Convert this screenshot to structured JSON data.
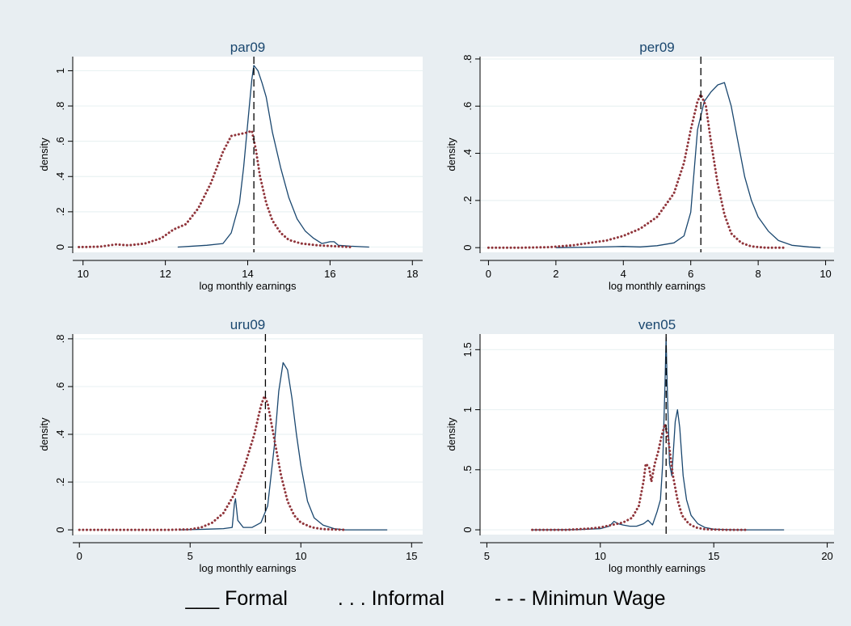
{
  "legend": {
    "formal": "___ Formal",
    "informal": ". . . Informal",
    "minimum_wage": "- - - Minimun Wage"
  },
  "colors": {
    "background": "#e8eef2",
    "plot_background": "#ffffff",
    "formal_line": "#1a476f",
    "informal_line": "#90353b",
    "grid": "#eaf2f3"
  },
  "chart_data": [
    {
      "type": "line",
      "title": "par09",
      "xlabel": "log monthly earnings",
      "ylabel": "density",
      "xlim": [
        9.75,
        18.25
      ],
      "ylim": [
        -0.03,
        1.08
      ],
      "xticks": [
        10,
        12,
        14,
        16,
        18
      ],
      "yticks": [
        0,
        0.2,
        0.4,
        0.6,
        0.8,
        1
      ],
      "ytick_labels": [
        "0",
        ".2",
        ".4",
        ".6",
        ".8",
        "1"
      ],
      "min_wage": 14.15,
      "grid": true,
      "series": [
        {
          "key": "formal",
          "style": "solid",
          "points": [
            [
              12.3,
              0.0
            ],
            [
              13.0,
              0.01
            ],
            [
              13.4,
              0.02
            ],
            [
              13.6,
              0.08
            ],
            [
              13.8,
              0.25
            ],
            [
              13.9,
              0.45
            ],
            [
              14.0,
              0.7
            ],
            [
              14.1,
              0.95
            ],
            [
              14.15,
              1.03
            ],
            [
              14.25,
              1.0
            ],
            [
              14.35,
              0.93
            ],
            [
              14.45,
              0.85
            ],
            [
              14.6,
              0.65
            ],
            [
              14.8,
              0.45
            ],
            [
              15.0,
              0.28
            ],
            [
              15.2,
              0.16
            ],
            [
              15.4,
              0.09
            ],
            [
              15.6,
              0.05
            ],
            [
              15.8,
              0.02
            ],
            [
              16.0,
              0.03
            ],
            [
              16.1,
              0.03
            ],
            [
              16.2,
              0.01
            ],
            [
              16.5,
              0.005
            ],
            [
              16.95,
              0.0
            ]
          ]
        },
        {
          "key": "informal",
          "style": "dotted",
          "points": [
            [
              9.9,
              0.0
            ],
            [
              10.4,
              0.002
            ],
            [
              10.8,
              0.015
            ],
            [
              11.1,
              0.01
            ],
            [
              11.5,
              0.02
            ],
            [
              11.9,
              0.05
            ],
            [
              12.2,
              0.1
            ],
            [
              12.5,
              0.13
            ],
            [
              12.8,
              0.22
            ],
            [
              13.1,
              0.36
            ],
            [
              13.4,
              0.54
            ],
            [
              13.6,
              0.63
            ],
            [
              13.8,
              0.64
            ],
            [
              14.0,
              0.65
            ],
            [
              14.1,
              0.66
            ],
            [
              14.2,
              0.55
            ],
            [
              14.3,
              0.4
            ],
            [
              14.45,
              0.25
            ],
            [
              14.6,
              0.15
            ],
            [
              14.8,
              0.08
            ],
            [
              15.0,
              0.04
            ],
            [
              15.3,
              0.02
            ],
            [
              15.7,
              0.01
            ],
            [
              16.1,
              0.005
            ],
            [
              16.5,
              0.0
            ]
          ]
        }
      ]
    },
    {
      "type": "line",
      "title": "per09",
      "xlabel": "log monthly earnings",
      "ylabel": "density",
      "xlim": [
        -0.25,
        10.25
      ],
      "ylim": [
        -0.02,
        0.81
      ],
      "xticks": [
        0,
        2,
        4,
        6,
        8,
        10
      ],
      "yticks": [
        0,
        0.2,
        0.4,
        0.6,
        0.8
      ],
      "ytick_labels": [
        "0",
        ".2",
        ".4",
        ".6",
        ".8"
      ],
      "min_wage": 6.3,
      "grid": true,
      "series": [
        {
          "key": "formal",
          "style": "solid",
          "points": [
            [
              2.0,
              0.0
            ],
            [
              3.0,
              0.002
            ],
            [
              4.0,
              0.005
            ],
            [
              4.5,
              0.003
            ],
            [
              5.0,
              0.008
            ],
            [
              5.5,
              0.02
            ],
            [
              5.8,
              0.05
            ],
            [
              6.0,
              0.15
            ],
            [
              6.2,
              0.5
            ],
            [
              6.4,
              0.62
            ],
            [
              6.6,
              0.66
            ],
            [
              6.8,
              0.69
            ],
            [
              7.0,
              0.7
            ],
            [
              7.2,
              0.6
            ],
            [
              7.4,
              0.45
            ],
            [
              7.6,
              0.3
            ],
            [
              7.8,
              0.2
            ],
            [
              8.0,
              0.13
            ],
            [
              8.3,
              0.07
            ],
            [
              8.6,
              0.03
            ],
            [
              9.0,
              0.01
            ],
            [
              9.5,
              0.003
            ],
            [
              9.85,
              0.0
            ]
          ]
        },
        {
          "key": "informal",
          "style": "dotted",
          "points": [
            [
              0.0,
              0.0
            ],
            [
              1.0,
              0.0
            ],
            [
              1.8,
              0.002
            ],
            [
              2.5,
              0.01
            ],
            [
              3.0,
              0.02
            ],
            [
              3.5,
              0.03
            ],
            [
              4.0,
              0.05
            ],
            [
              4.5,
              0.08
            ],
            [
              5.0,
              0.13
            ],
            [
              5.5,
              0.23
            ],
            [
              5.8,
              0.36
            ],
            [
              6.0,
              0.5
            ],
            [
              6.2,
              0.62
            ],
            [
              6.3,
              0.65
            ],
            [
              6.45,
              0.6
            ],
            [
              6.6,
              0.45
            ],
            [
              6.8,
              0.27
            ],
            [
              7.0,
              0.14
            ],
            [
              7.2,
              0.06
            ],
            [
              7.5,
              0.02
            ],
            [
              7.8,
              0.005
            ],
            [
              8.2,
              0.0
            ],
            [
              8.8,
              0.0
            ]
          ]
        }
      ]
    },
    {
      "type": "line",
      "title": "uru09",
      "xlabel": "log monthly earnings",
      "ylabel": "density",
      "xlim": [
        -0.3,
        15.5
      ],
      "ylim": [
        -0.02,
        0.82
      ],
      "xticks": [
        0,
        5,
        10,
        15
      ],
      "yticks": [
        0,
        0.2,
        0.4,
        0.6,
        0.8
      ],
      "ytick_labels": [
        "0",
        ".2",
        ".4",
        ".6",
        ".8"
      ],
      "min_wage": 8.4,
      "grid": true,
      "series": [
        {
          "key": "formal",
          "style": "solid",
          "points": [
            [
              4.5,
              0.0
            ],
            [
              5.5,
              0.002
            ],
            [
              6.5,
              0.005
            ],
            [
              6.9,
              0.01
            ],
            [
              7.0,
              0.11
            ],
            [
              7.05,
              0.13
            ],
            [
              7.15,
              0.04
            ],
            [
              7.4,
              0.01
            ],
            [
              7.8,
              0.01
            ],
            [
              8.2,
              0.03
            ],
            [
              8.5,
              0.1
            ],
            [
              8.8,
              0.35
            ],
            [
              9.0,
              0.58
            ],
            [
              9.2,
              0.7
            ],
            [
              9.4,
              0.67
            ],
            [
              9.6,
              0.55
            ],
            [
              9.8,
              0.4
            ],
            [
              10.0,
              0.27
            ],
            [
              10.3,
              0.12
            ],
            [
              10.6,
              0.05
            ],
            [
              11.0,
              0.02
            ],
            [
              11.5,
              0.005
            ],
            [
              12.0,
              0.0
            ],
            [
              13.9,
              0.0
            ]
          ]
        },
        {
          "key": "informal",
          "style": "dotted",
          "points": [
            [
              0.0,
              0.0
            ],
            [
              2.0,
              0.0
            ],
            [
              4.0,
              0.0
            ],
            [
              5.0,
              0.002
            ],
            [
              5.5,
              0.01
            ],
            [
              6.0,
              0.03
            ],
            [
              6.5,
              0.07
            ],
            [
              7.0,
              0.15
            ],
            [
              7.5,
              0.28
            ],
            [
              7.9,
              0.4
            ],
            [
              8.2,
              0.52
            ],
            [
              8.35,
              0.56
            ],
            [
              8.5,
              0.53
            ],
            [
              8.8,
              0.38
            ],
            [
              9.1,
              0.23
            ],
            [
              9.4,
              0.12
            ],
            [
              9.7,
              0.06
            ],
            [
              10.0,
              0.03
            ],
            [
              10.5,
              0.01
            ],
            [
              11.0,
              0.003
            ],
            [
              12.0,
              0.0
            ]
          ]
        }
      ]
    },
    {
      "type": "line",
      "title": "ven05",
      "xlabel": "log monthly earnings",
      "ylabel": "density",
      "xlim": [
        4.7,
        20.3
      ],
      "ylim": [
        -0.04,
        1.63
      ],
      "xticks": [
        5,
        10,
        15,
        20
      ],
      "yticks": [
        0,
        0.5,
        1,
        1.5
      ],
      "ytick_labels": [
        "0",
        ".5",
        "1",
        "1.5"
      ],
      "min_wage": 12.9,
      "grid": true,
      "series": [
        {
          "key": "formal",
          "style": "solid",
          "points": [
            [
              7.0,
              0.0
            ],
            [
              9.0,
              0.002
            ],
            [
              10.0,
              0.01
            ],
            [
              10.4,
              0.03
            ],
            [
              10.6,
              0.07
            ],
            [
              10.8,
              0.05
            ],
            [
              11.0,
              0.04
            ],
            [
              11.3,
              0.03
            ],
            [
              11.6,
              0.03
            ],
            [
              11.9,
              0.05
            ],
            [
              12.1,
              0.08
            ],
            [
              12.3,
              0.04
            ],
            [
              12.5,
              0.15
            ],
            [
              12.65,
              0.25
            ],
            [
              12.75,
              0.55
            ],
            [
              12.85,
              1.2
            ],
            [
              12.9,
              1.6
            ],
            [
              12.95,
              1.2
            ],
            [
              13.05,
              0.55
            ],
            [
              13.15,
              0.45
            ],
            [
              13.3,
              0.9
            ],
            [
              13.4,
              1.0
            ],
            [
              13.5,
              0.85
            ],
            [
              13.65,
              0.45
            ],
            [
              13.8,
              0.25
            ],
            [
              14.0,
              0.12
            ],
            [
              14.3,
              0.05
            ],
            [
              14.6,
              0.02
            ],
            [
              15.0,
              0.005
            ],
            [
              16.0,
              0.0
            ],
            [
              18.1,
              0.0
            ]
          ]
        },
        {
          "key": "informal",
          "style": "dotted",
          "points": [
            [
              7.0,
              0.0
            ],
            [
              8.5,
              0.0
            ],
            [
              9.5,
              0.01
            ],
            [
              10.0,
              0.02
            ],
            [
              10.5,
              0.04
            ],
            [
              11.0,
              0.06
            ],
            [
              11.4,
              0.1
            ],
            [
              11.7,
              0.2
            ],
            [
              11.9,
              0.4
            ],
            [
              12.0,
              0.55
            ],
            [
              12.15,
              0.52
            ],
            [
              12.25,
              0.4
            ],
            [
              12.4,
              0.55
            ],
            [
              12.55,
              0.65
            ],
            [
              12.7,
              0.78
            ],
            [
              12.85,
              0.88
            ],
            [
              13.0,
              0.75
            ],
            [
              13.2,
              0.45
            ],
            [
              13.4,
              0.25
            ],
            [
              13.6,
              0.12
            ],
            [
              13.9,
              0.05
            ],
            [
              14.2,
              0.02
            ],
            [
              14.6,
              0.005
            ],
            [
              15.5,
              0.0
            ],
            [
              16.5,
              0.0
            ]
          ]
        }
      ]
    }
  ]
}
